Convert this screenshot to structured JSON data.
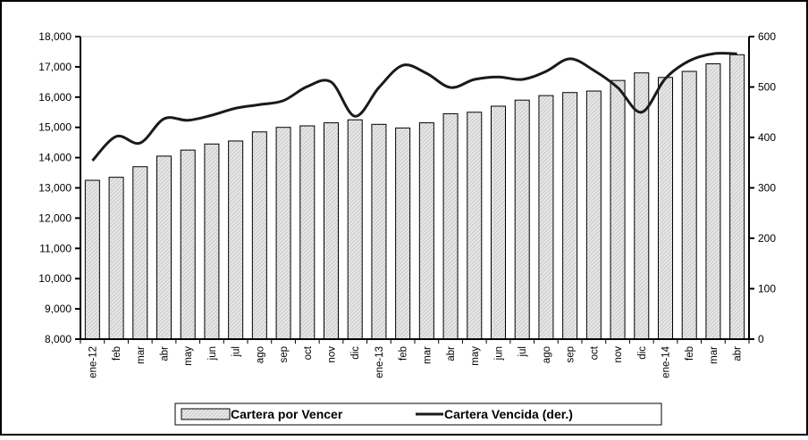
{
  "chart_data": {
    "type": "bar",
    "categories": [
      "ene-12",
      "feb",
      "mar",
      "abr",
      "may",
      "jun",
      "jul",
      "ago",
      "sep",
      "oct",
      "nov",
      "dic",
      "ene-13",
      "feb",
      "mar",
      "abr",
      "may",
      "jun",
      "jul",
      "ago",
      "sep",
      "oct",
      "nov",
      "dic",
      "ene-14",
      "feb",
      "mar",
      "abr"
    ],
    "series": [
      {
        "name": "Cartera por Vencer",
        "type": "bar",
        "color": "#d4d4d4",
        "values": [
          13250,
          13350,
          13700,
          14050,
          14250,
          14450,
          14550,
          14850,
          15000,
          15050,
          15150,
          15250,
          15100,
          14980,
          15150,
          15450,
          15500,
          15700,
          15900,
          16050,
          16150,
          16200,
          16550,
          16800,
          16650,
          16850,
          17100,
          17400
        ]
      },
      {
        "name": "Cartera Vencida (der.)",
        "type": "line",
        "axis": "y2",
        "color": "#1a1a1a",
        "values": [
          354,
          402,
          389,
          437,
          434,
          444,
          458,
          465,
          473,
          501,
          510,
          442,
          499,
          543,
          527,
          499,
          515,
          520,
          515,
          531,
          556,
          533,
          499,
          450,
          517,
          552,
          566,
          566
        ]
      }
    ],
    "ylim": [
      8000,
      18000
    ],
    "yticks": [
      {
        "value": 8000,
        "label": "8,000"
      },
      {
        "value": 9000,
        "label": "9,000"
      },
      {
        "value": 10000,
        "label": "10,000"
      },
      {
        "value": 11000,
        "label": "11,000"
      },
      {
        "value": 12000,
        "label": "12,000"
      },
      {
        "value": 13000,
        "label": "13,000"
      },
      {
        "value": 14000,
        "label": "14,000"
      },
      {
        "value": 15000,
        "label": "15,000"
      },
      {
        "value": 16000,
        "label": "16,000"
      },
      {
        "value": 17000,
        "label": "17,000"
      },
      {
        "value": 18000,
        "label": "18,000"
      }
    ],
    "y2lim": [
      0,
      600
    ],
    "y2ticks": [
      0,
      100,
      200,
      300,
      400,
      500,
      600
    ],
    "grid": false,
    "legend": "bottom"
  }
}
